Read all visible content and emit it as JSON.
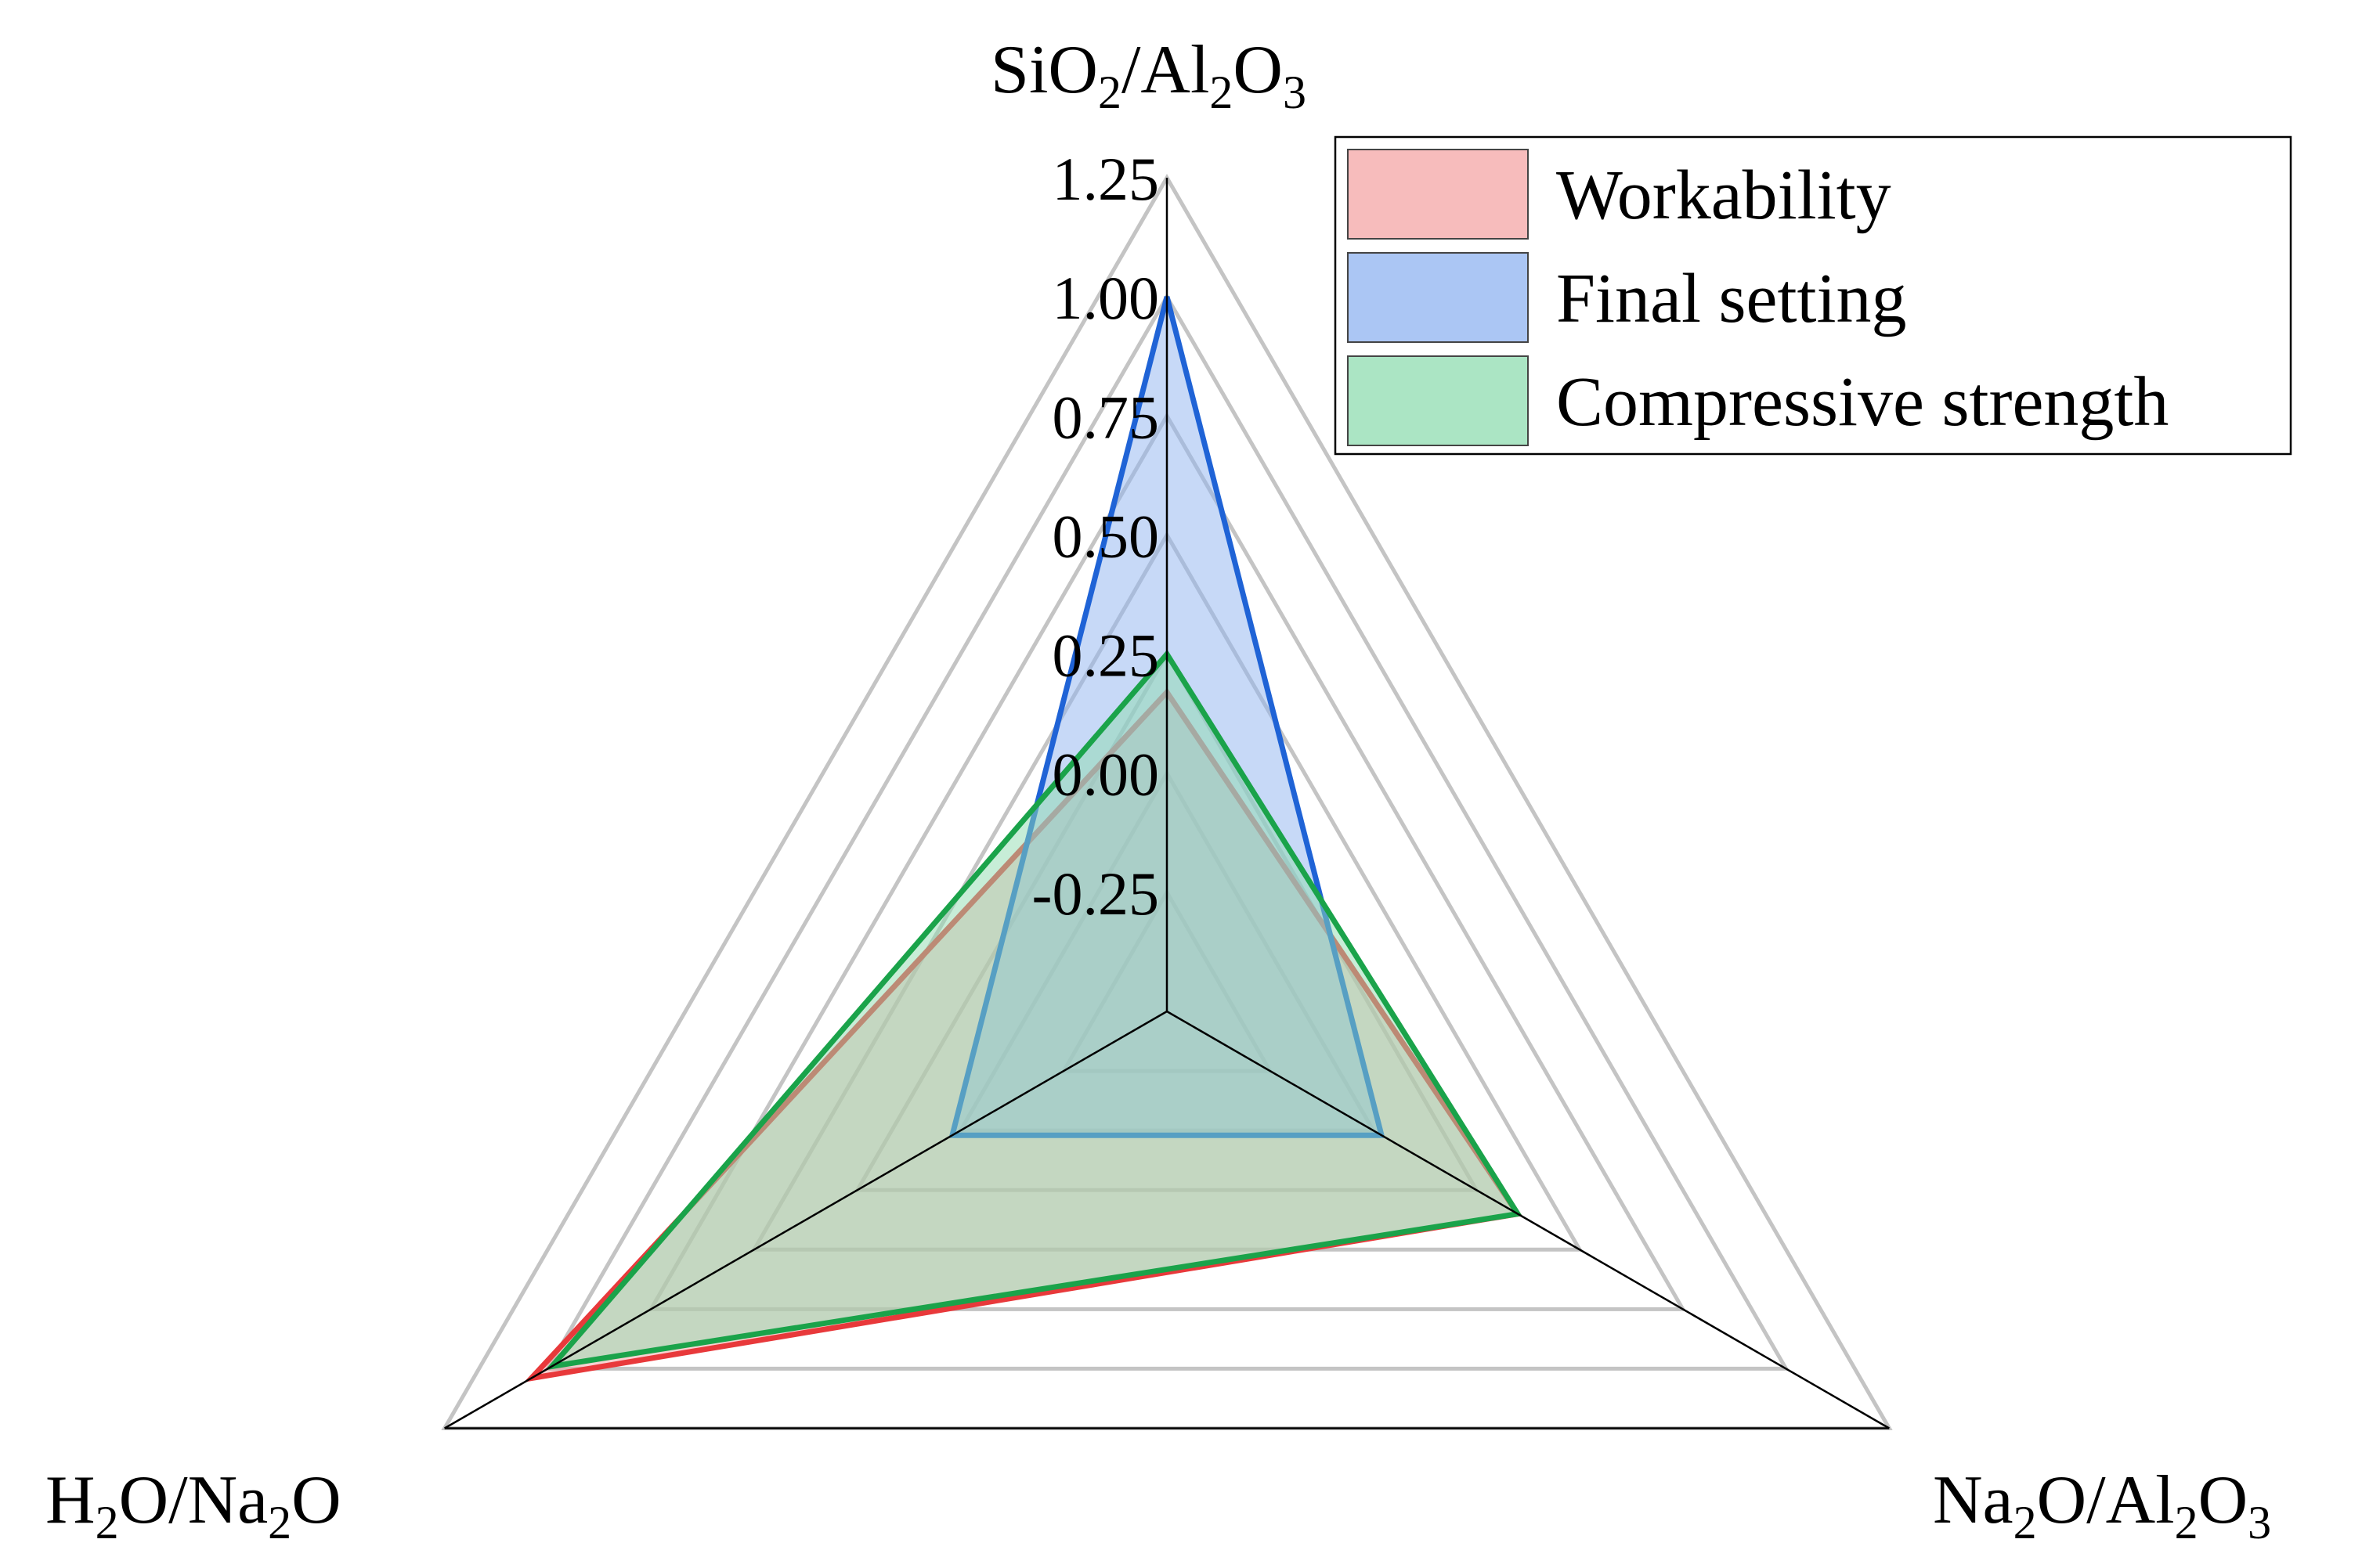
{
  "chart_data": {
    "type": "radar",
    "title": "",
    "axes": [
      {
        "name": "SiO2/Al2O3",
        "parts": [
          [
            "SiO",
            ""
          ],
          [
            "2",
            "sub"
          ],
          [
            "/Al",
            ""
          ],
          [
            "2",
            "sub"
          ],
          [
            "O",
            ""
          ],
          [
            "3",
            "sub"
          ]
        ]
      },
      {
        "name": "Na2O/Al2O3",
        "parts": [
          [
            "Na",
            ""
          ],
          [
            "2",
            "sub"
          ],
          [
            "O/Al",
            ""
          ],
          [
            "2",
            "sub"
          ],
          [
            "O",
            ""
          ],
          [
            "3",
            "sub"
          ]
        ]
      },
      {
        "name": "H2O/Na2O",
        "parts": [
          [
            "H",
            ""
          ],
          [
            "2",
            "sub"
          ],
          [
            "O/Na",
            ""
          ],
          [
            "2",
            "sub"
          ],
          [
            "O",
            ""
          ]
        ]
      }
    ],
    "range": [
      -0.5,
      1.25
    ],
    "ticks": [
      "-0.25",
      "0.00",
      "0.25",
      "0.50",
      "0.75",
      "1.00",
      "1.25"
    ],
    "grid": true,
    "legend_position": "top-right",
    "series": [
      {
        "name": "Workability",
        "values": [
          0.17,
          0.35,
          1.04
        ],
        "stroke": "#e8393b",
        "fill": "#f4a6a6"
      },
      {
        "name": "Final setting",
        "values": [
          1.0,
          0.02,
          0.02
        ],
        "stroke": "#1f63d6",
        "fill": "#8fb3f0"
      },
      {
        "name": "Compressive strength",
        "values": [
          0.25,
          0.35,
          0.99
        ],
        "stroke": "#1aa34a",
        "fill": "#8fdcb0"
      }
    ]
  }
}
